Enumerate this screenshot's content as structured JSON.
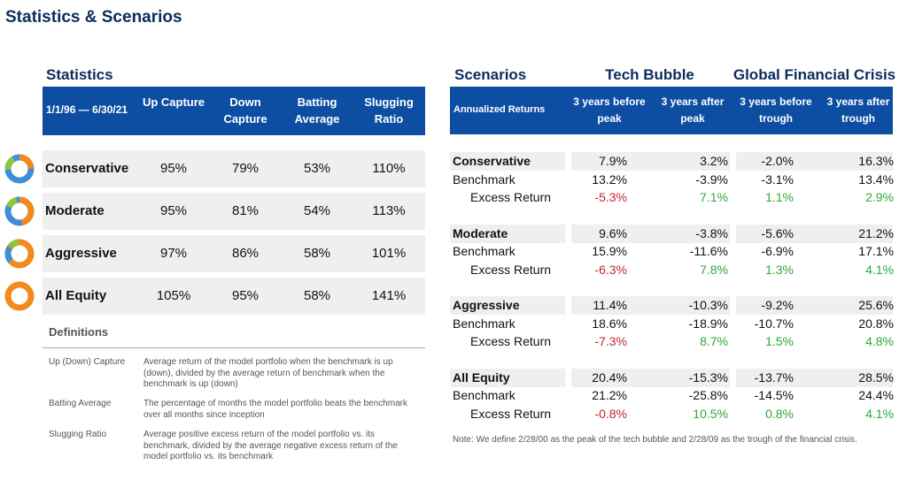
{
  "title": "Statistics & Scenarios",
  "statistics": {
    "heading": "Statistics",
    "header": {
      "period": "1/1/96 — 6/30/21",
      "columns": [
        "Up Capture",
        "Down Capture",
        "Batting Average",
        "Slugging Ratio"
      ]
    },
    "rows": [
      {
        "name": "Conservative",
        "values": [
          "95%",
          "79%",
          "53%",
          "110%"
        ]
      },
      {
        "name": "Moderate",
        "values": [
          "95%",
          "81%",
          "54%",
          "113%"
        ]
      },
      {
        "name": "Aggressive",
        "values": [
          "97%",
          "86%",
          "58%",
          "101%"
        ]
      },
      {
        "name": "All Equity",
        "values": [
          "105%",
          "95%",
          "58%",
          "141%"
        ]
      }
    ],
    "definitions": {
      "heading": "Definitions",
      "items": [
        {
          "term": "Up (Down) Capture",
          "text": "Average return of the model portfolio when the benchmark is up (down), divided by the average return of benchmark when the benchmark is up (down)"
        },
        {
          "term": "Batting Average",
          "text": "The percentage of months the model portfolio beats the benchmark over all months since inception"
        },
        {
          "term": "Slugging Ratio",
          "text": "Average positive excess return of the model portfolio vs. its benchmark, divided by the average negative excess return of the model portfolio vs. its benchmark"
        }
      ]
    }
  },
  "scenarios": {
    "heading": "Scenarios",
    "groups": [
      "Tech Bubble",
      "Global Financial Crisis"
    ],
    "header": {
      "label": "Annualized Returns",
      "columns": [
        "3 years before peak",
        "3 years after peak",
        "3 years before trough",
        "3 years after trough"
      ]
    },
    "portfolios": [
      {
        "name": "Conservative",
        "rows": [
          {
            "label": "Conservative",
            "values": [
              "7.9%",
              "3.2%",
              "-2.0%",
              "16.3%"
            ]
          },
          {
            "label": "Benchmark",
            "values": [
              "13.2%",
              "-3.9%",
              "-3.1%",
              "13.4%"
            ]
          },
          {
            "label": "Excess Return",
            "values": [
              "-5.3%",
              "7.1%",
              "1.1%",
              "2.9%"
            ]
          }
        ]
      },
      {
        "name": "Moderate",
        "rows": [
          {
            "label": "Moderate",
            "values": [
              "9.6%",
              "-3.8%",
              "-5.6%",
              "21.2%"
            ]
          },
          {
            "label": "Benchmark",
            "values": [
              "15.9%",
              "-11.6%",
              "-6.9%",
              "17.1%"
            ]
          },
          {
            "label": "Excess Return",
            "values": [
              "-6.3%",
              "7.8%",
              "1.3%",
              "4.1%"
            ]
          }
        ]
      },
      {
        "name": "Aggressive",
        "rows": [
          {
            "label": "Aggressive",
            "values": [
              "11.4%",
              "-10.3%",
              "-9.2%",
              "25.6%"
            ]
          },
          {
            "label": "Benchmark",
            "values": [
              "18.6%",
              "-18.9%",
              "-10.7%",
              "20.8%"
            ]
          },
          {
            "label": "Excess Return",
            "values": [
              "-7.3%",
              "8.7%",
              "1.5%",
              "4.8%"
            ]
          }
        ]
      },
      {
        "name": "All Equity",
        "rows": [
          {
            "label": "All Equity",
            "values": [
              "20.4%",
              "-15.3%",
              "-13.7%",
              "28.5%"
            ]
          },
          {
            "label": "Benchmark",
            "values": [
              "21.2%",
              "-25.8%",
              "-14.5%",
              "24.4%"
            ]
          },
          {
            "label": "Excess Return",
            "values": [
              "-0.8%",
              "10.5%",
              "0.8%",
              "4.1%"
            ]
          }
        ]
      }
    ],
    "note": "Note: We define 2/28/00 as the peak of the tech bubble and 2/28/09 as the trough of the financial crisis."
  }
}
